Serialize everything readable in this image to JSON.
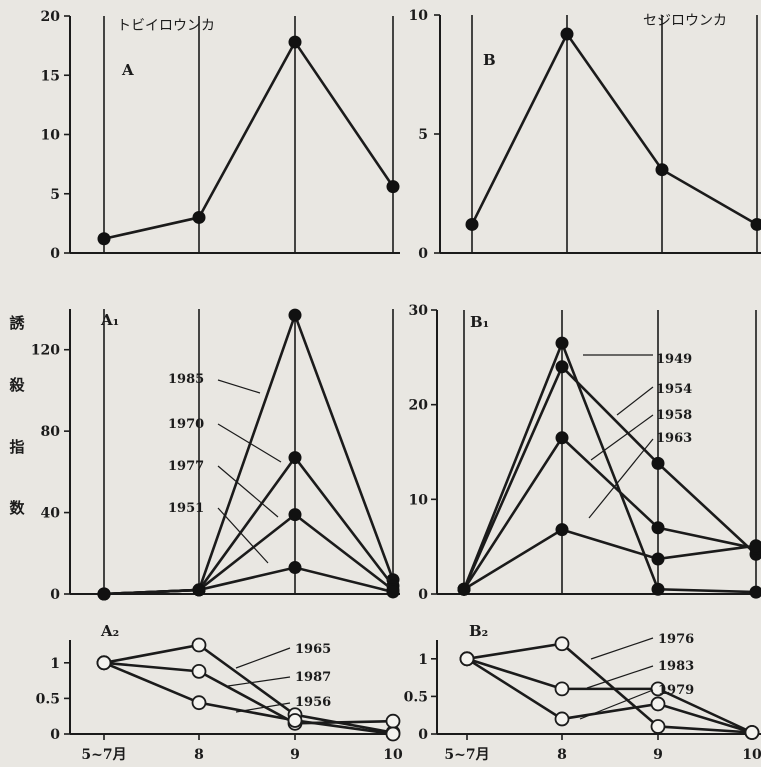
{
  "y_axis_label": [
    "誘",
    "殺",
    "指",
    "数"
  ],
  "chart_data": [
    {
      "id": "A",
      "type": "line",
      "species": "トビイロウンカ",
      "panel_label": "A",
      "categories": [
        "5~7月",
        "8",
        "9",
        "10"
      ],
      "ylim": [
        0,
        20
      ],
      "yticks": [
        0,
        5,
        10,
        15,
        20
      ],
      "series": [
        {
          "name": "",
          "marker": "filled",
          "values": [
            1.2,
            3.0,
            17.8,
            5.6
          ]
        }
      ]
    },
    {
      "id": "B",
      "type": "line",
      "species": "セジロウンカ",
      "panel_label": "B",
      "categories": [
        "5~7月",
        "8",
        "9",
        "10"
      ],
      "ylim": [
        0,
        10
      ],
      "yticks": [
        0,
        5,
        10
      ],
      "series": [
        {
          "name": "",
          "marker": "filled",
          "values": [
            1.2,
            9.2,
            3.5,
            1.2
          ]
        }
      ]
    },
    {
      "id": "A1",
      "type": "line",
      "panel_label": "A₁",
      "categories": [
        "5~7月",
        "8",
        "9",
        "10"
      ],
      "ylim": [
        0,
        140
      ],
      "yticks": [
        0,
        40,
        80,
        120
      ],
      "series": [
        {
          "name": "1985",
          "marker": "filled",
          "values": [
            0,
            2,
            137,
            7
          ]
        },
        {
          "name": "1970",
          "marker": "filled",
          "values": [
            0,
            2,
            67,
            4
          ]
        },
        {
          "name": "1977",
          "marker": "filled",
          "values": [
            0,
            2,
            39,
            2
          ]
        },
        {
          "name": "1951",
          "marker": "filled",
          "values": [
            0,
            2,
            13,
            1
          ]
        }
      ]
    },
    {
      "id": "B1",
      "type": "line",
      "panel_label": "B₁",
      "categories": [
        "5~7月",
        "8",
        "9",
        "10"
      ],
      "ylim": [
        0,
        30
      ],
      "yticks": [
        0,
        10,
        20,
        30
      ],
      "series": [
        {
          "name": "1949",
          "marker": "filled",
          "values": [
            0.5,
            26.5,
            0.5,
            0.2
          ]
        },
        {
          "name": "1954",
          "marker": "filled",
          "values": [
            0.5,
            24.0,
            13.8,
            4.2
          ]
        },
        {
          "name": "1958",
          "marker": "filled",
          "values": [
            0.5,
            16.5,
            7.0,
            4.8
          ]
        },
        {
          "name": "1963",
          "marker": "filled",
          "values": [
            0.5,
            6.8,
            3.7,
            5.1
          ]
        }
      ]
    },
    {
      "id": "A2",
      "type": "line",
      "panel_label": "A₂",
      "categories": [
        "5~7月",
        "8",
        "9",
        "10"
      ],
      "ylim": [
        0,
        1.25
      ],
      "yticks": [
        "0",
        "0.5",
        "1"
      ],
      "series": [
        {
          "name": "1965",
          "marker": "open",
          "values": [
            1.0,
            1.25,
            0.27,
            0.02
          ]
        },
        {
          "name": "1987",
          "marker": "open",
          "values": [
            1.0,
            0.88,
            0.15,
            0.18
          ]
        },
        {
          "name": "1956",
          "marker": "open",
          "values": [
            1.0,
            0.44,
            0.19,
            0.0
          ]
        }
      ]
    },
    {
      "id": "B2",
      "type": "line",
      "panel_label": "B₂",
      "categories": [
        "5~7月",
        "8",
        "9",
        "10"
      ],
      "ylim": [
        0,
        1.25
      ],
      "yticks": [
        "0",
        "0.5",
        "1"
      ],
      "series": [
        {
          "name": "1976",
          "marker": "open",
          "values": [
            1.0,
            1.2,
            0.1,
            0.02
          ]
        },
        {
          "name": "1983",
          "marker": "open",
          "values": [
            1.0,
            0.6,
            0.6,
            0.02
          ]
        },
        {
          "name": "1979",
          "marker": "open",
          "values": [
            1.0,
            0.2,
            0.4,
            0.02
          ]
        }
      ]
    }
  ]
}
